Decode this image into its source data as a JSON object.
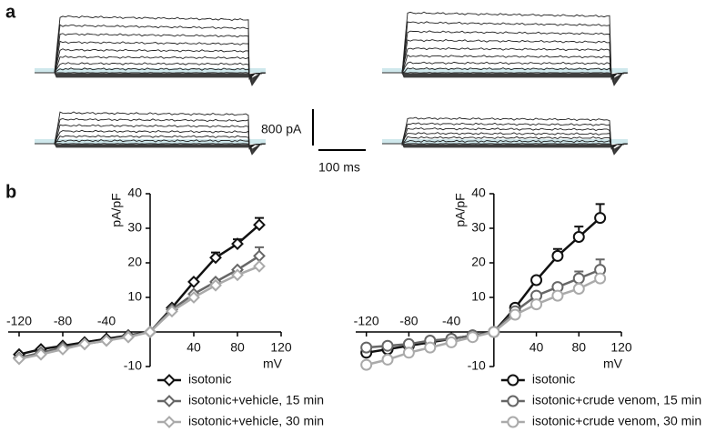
{
  "panel_labels": [
    "a",
    "b"
  ],
  "scale_bar": {
    "current": "800 pA",
    "time": "100 ms"
  },
  "chart_data": [
    {
      "type": "line",
      "xlabel": "mV",
      "ylabel": "pA/pF",
      "marker": "diamond",
      "legend": "bottom",
      "x": [
        -120,
        -100,
        -80,
        -60,
        -40,
        -20,
        0,
        20,
        40,
        60,
        80,
        100
      ],
      "xlim": [
        -130,
        120
      ],
      "ylim": [
        -10,
        40
      ],
      "xticks": [
        -120,
        -80,
        -40,
        40,
        80,
        120
      ],
      "yticks": [
        -10,
        10,
        20,
        30,
        40
      ],
      "series": [
        {
          "name": "isotonic",
          "color": "#111111",
          "values": [
            -6.5,
            -5,
            -4,
            -3,
            -2,
            -1,
            0,
            7,
            14.5,
            21.5,
            25.5,
            31
          ],
          "errors": [
            null,
            null,
            null,
            null,
            null,
            null,
            null,
            null,
            null,
            1.5,
            1.3,
            2
          ]
        },
        {
          "name": "isotonic+vehicle, 15 min",
          "color": "#666666",
          "values": [
            -7.5,
            -6,
            -4.5,
            -3.5,
            -2.5,
            -1.2,
            0,
            6.5,
            11,
            14.5,
            18,
            22
          ],
          "errors": [
            null,
            null,
            null,
            null,
            null,
            null,
            null,
            null,
            null,
            null,
            null,
            2.5
          ]
        },
        {
          "name": "isotonic+vehicle, 30 min",
          "color": "#aaaaaa",
          "values": [
            -7.8,
            -6.5,
            -5,
            -3.5,
            -2.5,
            -1.5,
            0,
            6,
            10,
            13.5,
            16.5,
            19
          ]
        }
      ]
    },
    {
      "type": "line",
      "xlabel": "mV",
      "ylabel": "pA/pF",
      "marker": "circle",
      "legend": "bottom",
      "x": [
        -120,
        -100,
        -80,
        -60,
        -40,
        -20,
        0,
        20,
        40,
        60,
        80,
        100
      ],
      "xlim": [
        -130,
        120
      ],
      "ylim": [
        -10,
        40
      ],
      "xticks": [
        -120,
        -80,
        -40,
        40,
        80,
        120
      ],
      "yticks": [
        -10,
        10,
        20,
        30,
        40
      ],
      "series": [
        {
          "name": "isotonic",
          "color": "#111111",
          "values": [
            -6,
            -5,
            -4,
            -3,
            -2,
            -1,
            0,
            7,
            15,
            22,
            27.5,
            33
          ],
          "errors": [
            null,
            null,
            null,
            null,
            null,
            null,
            null,
            null,
            null,
            2,
            3,
            4
          ]
        },
        {
          "name": "isotonic+crude venom, 15 min",
          "color": "#666666",
          "values": [
            -4.5,
            -4,
            -3.5,
            -2.5,
            -2,
            -1,
            0,
            6,
            10.5,
            13,
            15.5,
            18
          ],
          "errors": [
            null,
            null,
            null,
            null,
            null,
            null,
            null,
            null,
            null,
            null,
            2,
            3
          ]
        },
        {
          "name": "isotonic+crude venom, 30 min",
          "color": "#aaaaaa",
          "values": [
            -9.5,
            -8,
            -6,
            -4.5,
            -3,
            -1.5,
            0,
            5,
            8,
            10.5,
            12.5,
            15.5
          ]
        }
      ]
    }
  ]
}
